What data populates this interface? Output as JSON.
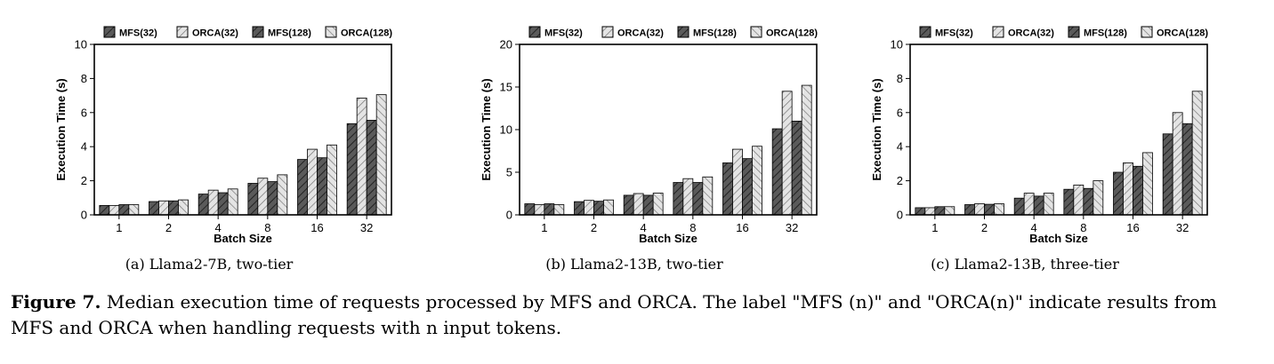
{
  "figure": {
    "label": "Figure 7.",
    "text": "Median execution time of requests processed by MFS and ORCA. The label \"MFS (n)\" and \"ORCA(n)\" indicate results from MFS and ORCA when handling requests with n input tokens."
  },
  "legend_entries": [
    "MFS(32)",
    "ORCA(32)",
    "MFS(128)",
    "ORCA(128)"
  ],
  "series_styles": [
    {
      "fill": "#5a5a5a",
      "pattern": "dark"
    },
    {
      "fill": "#d9d9d9",
      "pattern": "light"
    },
    {
      "fill": "#5a5a5a",
      "pattern": "dark"
    },
    {
      "fill": "#d9d9d9",
      "pattern": "light-back"
    }
  ],
  "chart_data": [
    {
      "type": "bar",
      "subcaption": "(a)  Llama2-7B, two-tier",
      "xlabel": "Batch Size",
      "ylabel": "Execution Time (s)",
      "categories": [
        "1",
        "2",
        "4",
        "8",
        "16",
        "32"
      ],
      "ylim": [
        0,
        10
      ],
      "yticks": [
        0,
        2,
        4,
        6,
        8,
        10
      ],
      "series": [
        {
          "name": "MFS(32)",
          "values": [
            0.55,
            0.78,
            1.22,
            1.85,
            3.25,
            5.35
          ]
        },
        {
          "name": "ORCA(32)",
          "values": [
            0.55,
            0.82,
            1.45,
            2.15,
            3.85,
            6.85
          ]
        },
        {
          "name": "MFS(128)",
          "values": [
            0.6,
            0.82,
            1.3,
            1.95,
            3.35,
            5.55
          ]
        },
        {
          "name": "ORCA(128)",
          "values": [
            0.6,
            0.88,
            1.52,
            2.35,
            4.1,
            7.05
          ]
        }
      ]
    },
    {
      "type": "bar",
      "subcaption": "(b)  Llama2-13B, two-tier",
      "xlabel": "Batch Size",
      "ylabel": "Execution Time (s)",
      "categories": [
        "1",
        "2",
        "4",
        "8",
        "16",
        "32"
      ],
      "ylim": [
        0,
        20
      ],
      "yticks": [
        0,
        5,
        10,
        15,
        20
      ],
      "series": [
        {
          "name": "MFS(32)",
          "values": [
            1.3,
            1.55,
            2.3,
            3.8,
            6.1,
            10.1
          ]
        },
        {
          "name": "ORCA(32)",
          "values": [
            1.2,
            1.7,
            2.5,
            4.25,
            7.7,
            14.5
          ]
        },
        {
          "name": "MFS(128)",
          "values": [
            1.3,
            1.6,
            2.3,
            3.8,
            6.6,
            11.0
          ]
        },
        {
          "name": "ORCA(128)",
          "values": [
            1.2,
            1.75,
            2.55,
            4.45,
            8.05,
            15.2
          ]
        }
      ]
    },
    {
      "type": "bar",
      "subcaption": "(c)  Llama2-13B, three-tier",
      "xlabel": "Batch Size",
      "ylabel": "Execution Time (s)",
      "categories": [
        "1",
        "2",
        "4",
        "8",
        "16",
        "32"
      ],
      "ylim": [
        0,
        10
      ],
      "yticks": [
        0,
        2,
        4,
        6,
        8,
        10
      ],
      "series": [
        {
          "name": "MFS(32)",
          "values": [
            0.42,
            0.6,
            0.98,
            1.5,
            2.5,
            4.75
          ]
        },
        {
          "name": "ORCA(32)",
          "values": [
            0.42,
            0.65,
            1.27,
            1.75,
            3.05,
            6.0
          ]
        },
        {
          "name": "MFS(128)",
          "values": [
            0.48,
            0.62,
            1.1,
            1.55,
            2.85,
            5.35
          ]
        },
        {
          "name": "ORCA(128)",
          "values": [
            0.48,
            0.65,
            1.27,
            2.0,
            3.65,
            7.25
          ]
        }
      ]
    }
  ]
}
